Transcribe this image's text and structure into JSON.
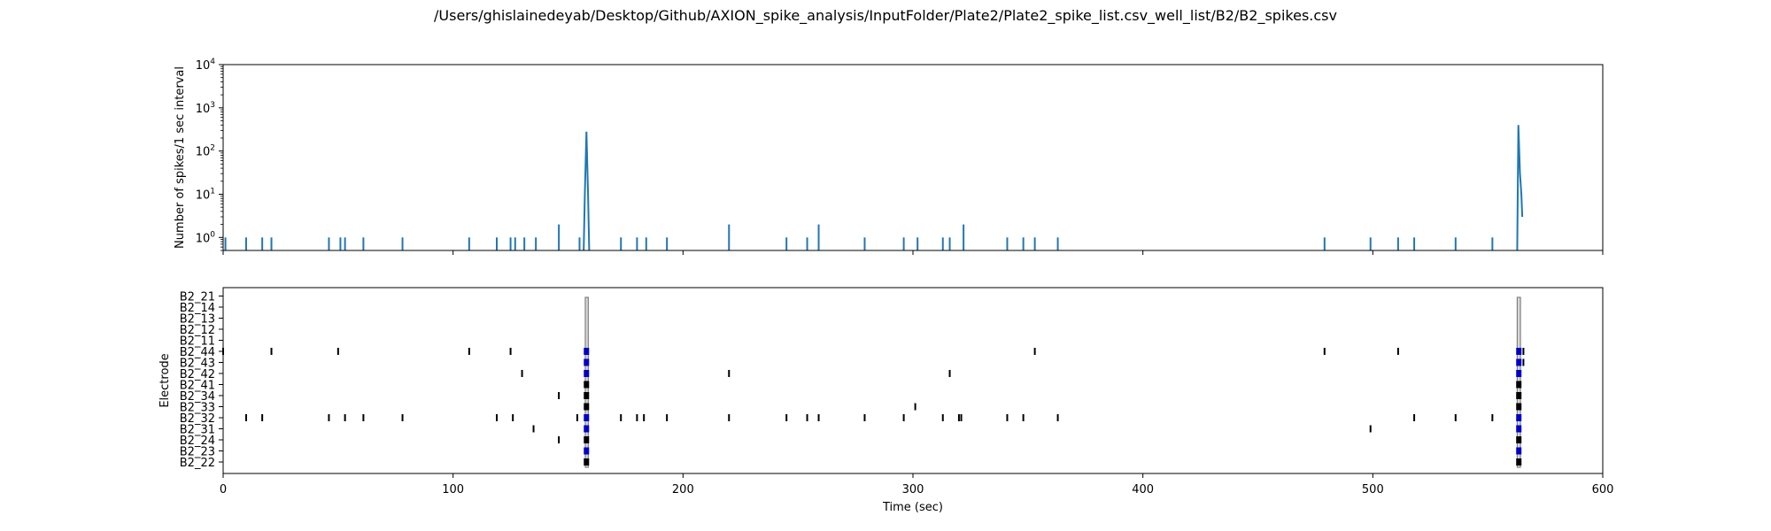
{
  "figure": {
    "title": "/Users/ghislainedeyab/Desktop/Github/AXION_spike_analysis/InputFolder/Plate2/Plate2_spike_list.csv_well_list/B2/B2_spikes.csv"
  },
  "colors": {
    "line": "#1f77b4",
    "spike": "#000000",
    "burst": "#0000cc",
    "network_burst": "#808080"
  },
  "chart_data": [
    {
      "type": "line",
      "ylabel": "Number of spikes/1 sec interval",
      "xlim": [
        0,
        600
      ],
      "ylim": [
        0.5,
        10000
      ],
      "yscale": "log",
      "ytick_labels": [
        {
          "value": 1,
          "base": "10",
          "exp": "0"
        },
        {
          "value": 10,
          "base": "10",
          "exp": "1"
        },
        {
          "value": 100,
          "base": "10",
          "exp": "2"
        },
        {
          "value": 1000,
          "base": "10",
          "exp": "3"
        },
        {
          "value": 10000,
          "base": "10",
          "exp": "4"
        }
      ],
      "xticks": [
        0,
        100,
        200,
        300,
        400,
        500,
        600
      ],
      "grid": false,
      "series": [
        {
          "impulses": [
            [
              1,
              1
            ],
            [
              10,
              1
            ],
            [
              17,
              1
            ],
            [
              21,
              1
            ],
            [
              46,
              1
            ],
            [
              51,
              1
            ],
            [
              53,
              1
            ],
            [
              61,
              1
            ],
            [
              78,
              1
            ],
            [
              107,
              1
            ],
            [
              119,
              1
            ],
            [
              125,
              1
            ],
            [
              127,
              1
            ],
            [
              131,
              1
            ],
            [
              136,
              1
            ],
            [
              146,
              2
            ],
            [
              155,
              1
            ],
            [
              173,
              1
            ],
            [
              180,
              1
            ],
            [
              184,
              1
            ],
            [
              193,
              1
            ],
            [
              220,
              2
            ],
            [
              245,
              1
            ],
            [
              254,
              1
            ],
            [
              259,
              2
            ],
            [
              279,
              1
            ],
            [
              296,
              1
            ],
            [
              302,
              1
            ],
            [
              313,
              1
            ],
            [
              316,
              1
            ],
            [
              322,
              2
            ],
            [
              341,
              1
            ],
            [
              348,
              1
            ],
            [
              353,
              1
            ],
            [
              363,
              1
            ],
            [
              479,
              1
            ],
            [
              499,
              1
            ],
            [
              511,
              1
            ],
            [
              518,
              1
            ],
            [
              536,
              1
            ],
            [
              552,
              1
            ]
          ],
          "bursts": [
            [
              [
                156.8,
                0.5
              ],
              [
                157.3,
                10
              ],
              [
                158,
                280
              ],
              [
                158.7,
                10
              ],
              [
                159.2,
                0.5
              ]
            ],
            [
              [
                562.8,
                0.5
              ],
              [
                563.3,
                400
              ],
              [
                564,
                30
              ],
              [
                564.6,
                10
              ],
              [
                565,
                3
              ]
            ]
          ]
        }
      ]
    },
    {
      "type": "scatter",
      "subtype": "raster",
      "xlabel": "Time (sec)",
      "ylabel": "Electrode",
      "xlim": [
        0,
        600
      ],
      "xticks": [
        0,
        100,
        200,
        300,
        400,
        500,
        600
      ],
      "electrodes": [
        "B2_22",
        "B2_23",
        "B2_24",
        "B2_31",
        "B2_32",
        "B2_33",
        "B2_34",
        "B2_41",
        "B2_42",
        "B2_43",
        "B2_44",
        "B2_11",
        "B2_12",
        "B2_13",
        "B2_14",
        "B2_21"
      ],
      "spikes": {
        "B2_22": [],
        "B2_23": [],
        "B2_24": [
          146
        ],
        "B2_31": [
          135,
          499
        ],
        "B2_32": [
          10,
          17,
          46,
          53,
          61,
          78,
          119,
          126,
          154,
          173,
          180,
          183,
          193,
          220,
          245,
          254,
          259,
          279,
          296,
          313,
          320,
          321,
          341,
          348,
          363,
          518,
          536,
          552
        ],
        "B2_33": [
          301
        ],
        "B2_34": [
          146
        ],
        "B2_41": [],
        "B2_42": [
          130,
          220,
          316
        ],
        "B2_43": [],
        "B2_44": [
          0,
          21,
          50,
          107,
          125,
          353,
          479,
          511
        ],
        "B2_11": [],
        "B2_12": [],
        "B2_13": [],
        "B2_14": [],
        "B2_21": []
      },
      "burst_columns": [
        {
          "x": 158,
          "top_electrode": "B2_44",
          "blue": [
            "B2_44",
            "B2_43",
            "B2_42",
            "B2_32",
            "B2_31",
            "B2_23"
          ]
        },
        {
          "x": 563.5,
          "top_electrode": "B2_44",
          "blue": [
            "B2_44",
            "B2_43",
            "B2_42",
            "B2_32",
            "B2_31",
            "B2_23"
          ]
        }
      ],
      "extra_spikes": {
        "B2_44": [
          565.5
        ],
        "B2_43": [
          565.5
        ]
      },
      "network_bursts": [
        {
          "start": 157.5,
          "end": 158.8
        },
        {
          "start": 562.8,
          "end": 564.2
        }
      ]
    }
  ]
}
